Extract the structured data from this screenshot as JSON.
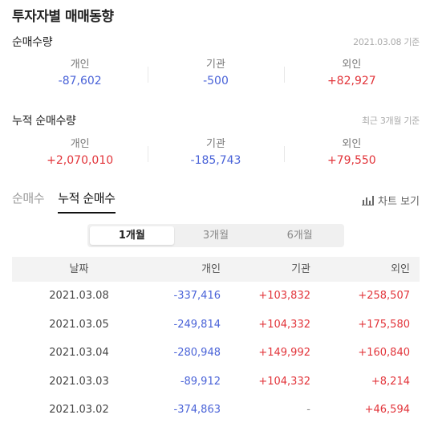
{
  "title": "투자자별 매매동향",
  "net_volume": {
    "title": "순매수량",
    "note": "2021.03.08 기준",
    "stats": [
      {
        "label": "개인",
        "value": "-87,602",
        "sign": "neg"
      },
      {
        "label": "기관",
        "value": "-500",
        "sign": "neg"
      },
      {
        "label": "외인",
        "value": "+82,927",
        "sign": "pos"
      }
    ]
  },
  "cumulative_volume": {
    "title": "누적 순매수량",
    "note": "최근 3개월 기준",
    "stats": [
      {
        "label": "개인",
        "value": "+2,070,010",
        "sign": "pos"
      },
      {
        "label": "기관",
        "value": "-185,743",
        "sign": "neg"
      },
      {
        "label": "외인",
        "value": "+79,550",
        "sign": "pos"
      }
    ]
  },
  "tabs": [
    {
      "label": "순매수",
      "active": false
    },
    {
      "label": "누적 순매수",
      "active": true
    }
  ],
  "chart_link": {
    "label": "차트 보기",
    "icon": "bar-chart-icon"
  },
  "period": [
    {
      "label": "1개월",
      "active": true
    },
    {
      "label": "3개월",
      "active": false
    },
    {
      "label": "6개월",
      "active": false
    }
  ],
  "table": {
    "headers": [
      "날짜",
      "개인",
      "기관",
      "외인"
    ],
    "rows": [
      {
        "date": "2021.03.08",
        "individual": "-337,416",
        "institution": "+103,832",
        "foreign": "+258,507"
      },
      {
        "date": "2021.03.05",
        "individual": "-249,814",
        "institution": "+104,332",
        "foreign": "+175,580"
      },
      {
        "date": "2021.03.04",
        "individual": "-280,948",
        "institution": "+149,992",
        "foreign": "+160,840"
      },
      {
        "date": "2021.03.03",
        "individual": "-89,912",
        "institution": "+104,332",
        "foreign": "+8,214"
      },
      {
        "date": "2021.03.02",
        "individual": "-374,863",
        "institution": "-",
        "foreign": "+46,594"
      }
    ]
  },
  "colors": {
    "negative": "#4a63d8",
    "positive": "#e2343a"
  }
}
